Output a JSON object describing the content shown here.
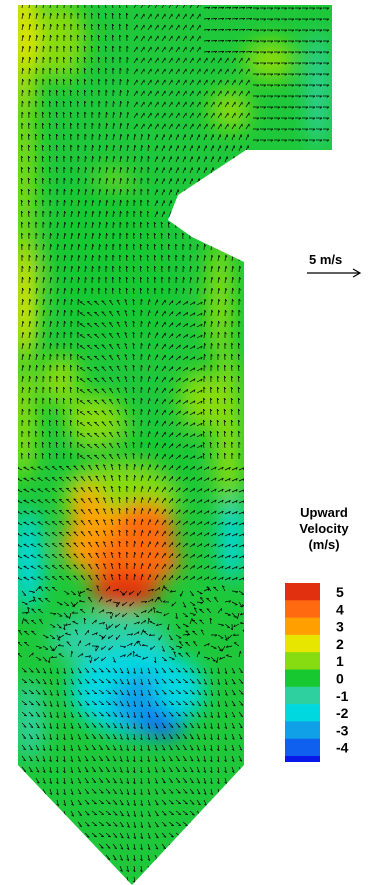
{
  "scale": {
    "label": "5 m/s"
  },
  "legend": {
    "title_lines": [
      "Upward",
      "Velocity",
      "(m/s)"
    ],
    "levels": [
      {
        "label": "5",
        "color": "#e03010"
      },
      {
        "label": "4",
        "color": "#ff6a10"
      },
      {
        "label": "3",
        "color": "#ffa000"
      },
      {
        "label": "2",
        "color": "#e6e600"
      },
      {
        "label": "1",
        "color": "#86dc10"
      },
      {
        "label": "0",
        "color": "#18c830"
      },
      {
        "label": "-1",
        "color": "#2ed0a0"
      },
      {
        "label": "-2",
        "color": "#00d8e0"
      },
      {
        "label": "-3",
        "color": "#10a0e8"
      },
      {
        "label": "-4",
        "color": "#1060f0"
      }
    ],
    "extra_color": "#0818e8"
  },
  "colors": {
    "base": "#1ec83a",
    "arrows": "#000000"
  }
}
